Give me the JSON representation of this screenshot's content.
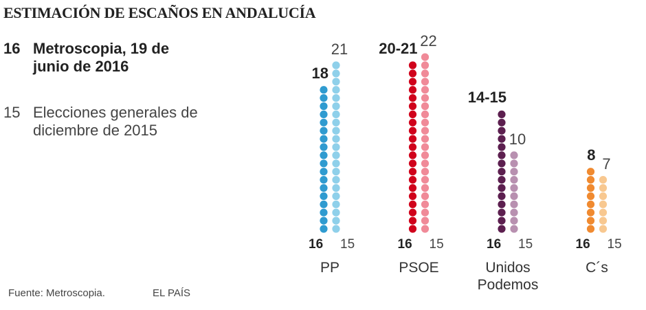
{
  "chart_data": {
    "type": "dotcolumn",
    "title": "ESTIMACIÓN DE ESCAÑOS EN ANDALUCÍA",
    "categories": [
      "PP",
      "PSOE",
      "Unidos Podemos",
      "C´s"
    ],
    "series": [
      {
        "name": "Metroscopia, 19 de junio de 2016",
        "label": "16",
        "colors": [
          "#2f9bd0",
          "#d0021b",
          "#5c1f4f",
          "#f08a30"
        ],
        "values": [
          18,
          21,
          15,
          8
        ],
        "value_labels": [
          "18",
          "20-21",
          "14-15",
          "8"
        ]
      },
      {
        "name": "Elecciones generales de diciembre de 2015",
        "label": "15",
        "colors": [
          "#8fd0ea",
          "#f08a98",
          "#b890b0",
          "#f8c890"
        ],
        "values": [
          21,
          22,
          10,
          7
        ]
      }
    ],
    "source": "Fuente: Metroscopia.",
    "brand": "EL PAÍS"
  }
}
